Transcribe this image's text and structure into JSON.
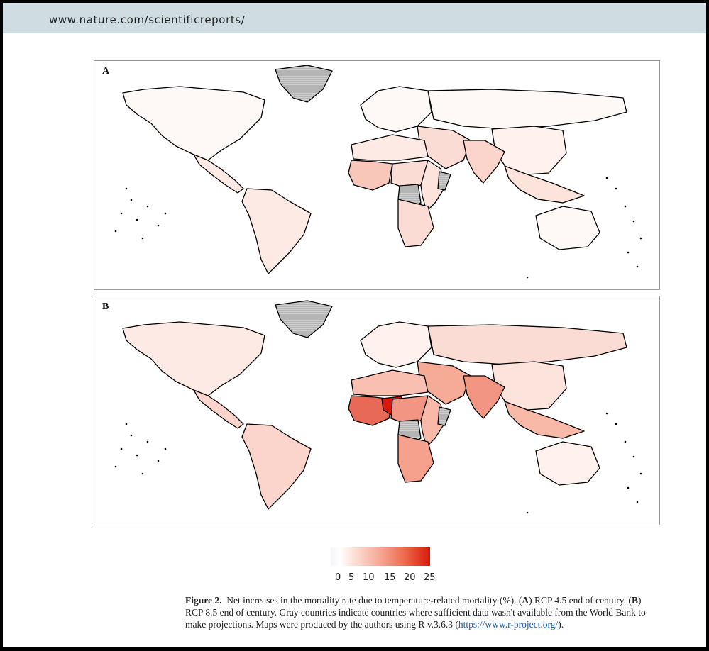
{
  "header": {
    "url": "www.nature.com/scientificreports/"
  },
  "panels": [
    {
      "label": "A",
      "scenario": "RCP 4.5 end of century"
    },
    {
      "label": "B",
      "scenario": "RCP 8.5 end of century"
    }
  ],
  "legend": {
    "ticks": [
      "0",
      "5",
      "10",
      "15",
      "20",
      "25"
    ],
    "range": [
      0,
      25
    ],
    "colors": {
      "low": "#ffffff",
      "mid": "#f6a793",
      "high": "#d8190a",
      "no_data": "#c8c8c8"
    }
  },
  "caption": {
    "figure_label": "Figure 2.",
    "text_1": "Net increases in the mortality rate due to temperature-related mortality (%). (",
    "a": "A",
    "text_2": ") RCP 4.5 end of century. (",
    "b": "B",
    "text_3": ") RCP 8.5 end of century. Gray countries indicate countries where sufficient data wasn't available from the World Bank to make projections. Maps were produced by the authors using R v.3.6.3 (",
    "link": "https://www.r-project.org/",
    "text_4": ")."
  },
  "map_regions": {
    "panel_a": {
      "north_america": 1,
      "mexico_central_america": 3,
      "south_america": 3,
      "greenland": "no data",
      "europe": 1,
      "russia": 1,
      "china_east_asia": 2,
      "middle_east": 5,
      "india_south_asia": 6,
      "southeast_asia": 4,
      "australia": 1,
      "west_africa": 8,
      "central_africa": 5,
      "east_africa": 4,
      "southern_africa": 5,
      "north_africa": 3,
      "drc": "no data",
      "somalia": "no data"
    },
    "panel_b": {
      "north_america": 3,
      "mexico_central_america": 6,
      "south_america": 6,
      "greenland": "no data",
      "europe": 2,
      "russia": 5,
      "china_east_asia": 4,
      "middle_east": 12,
      "india_south_asia": 14,
      "southeast_asia": 10,
      "australia": 2,
      "west_africa": 18,
      "niger": 25,
      "central_africa": 14,
      "east_africa": 10,
      "southern_africa": 13,
      "north_africa": 9,
      "drc": "no data",
      "somalia": "no data"
    }
  }
}
